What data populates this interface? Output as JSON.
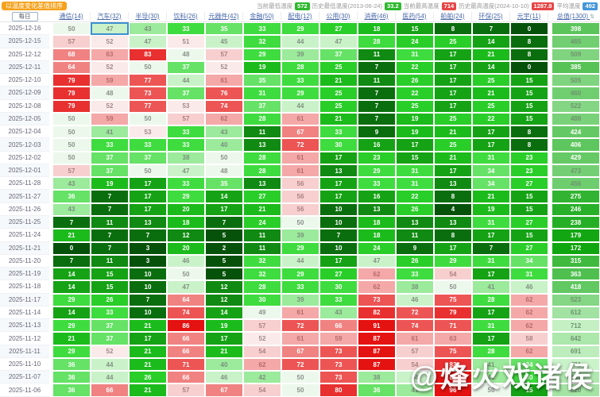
{
  "toolbar": {
    "sort_badge": "以温度变化差值排序",
    "stats": [
      {
        "label": "当前最低温度",
        "value": "572",
        "color": "#2db82d"
      },
      {
        "label": "历史最低温度(2013-06-24)",
        "value": "33.2",
        "color": "#2db82d"
      },
      {
        "label": "当前最高温度",
        "value": "714",
        "color": "#e64545"
      },
      {
        "label": "历史最高温度(2024-10-10)",
        "value": "1287.8",
        "color": "#e64545"
      },
      {
        "label": "平均温度",
        "value": "492",
        "color": "#4596d9"
      }
    ]
  },
  "table": {
    "date_header": "每日",
    "columns": [
      "通信(14)",
      "汽车(32)",
      "半导(30)",
      "饮料(26)",
      "元器件(42)",
      "金融(50)",
      "配电(12)",
      "公用(30)",
      "消费(46)",
      "医药(54)",
      "船舶(24)",
      "环保(25)",
      "元宇(11)"
    ],
    "total_header": "总值(1300)",
    "sort_icon": "⇅",
    "rows": [
      {
        "date": "2025-12-16",
        "values": [
          50,
          47,
          43,
          33,
          35,
          33,
          29,
          27,
          18,
          15,
          8,
          7,
          0
        ],
        "total": 398
      },
      {
        "date": "2025-12-15",
        "values": [
          57,
          52,
          47,
          51,
          45,
          32,
          44,
          47,
          28,
          24,
          25,
          14,
          8
        ],
        "total": 465
      },
      {
        "date": "2025-12-12",
        "values": [
          68,
          63,
          83,
          48,
          57,
          29,
          39,
          37,
          11,
          31,
          17,
          21,
          8
        ],
        "total": 509
      },
      {
        "date": "2025-12-11",
        "values": [
          64,
          52,
          50,
          37,
          52,
          19,
          28,
          25,
          7,
          22,
          17,
          14,
          0
        ],
        "total": 385
      },
      {
        "date": "2025-12-10",
        "values": [
          79,
          59,
          77,
          44,
          61,
          35,
          33,
          21,
          11,
          26,
          17,
          25,
          15
        ],
        "total": 505
      },
      {
        "date": "2025-12-09",
        "values": [
          79,
          48,
          73,
          37,
          76,
          31,
          29,
          25,
          7,
          22,
          17,
          21,
          15
        ],
        "total": 460
      },
      {
        "date": "2025-12-08",
        "values": [
          79,
          52,
          77,
          53,
          74,
          37,
          44,
          25,
          7,
          25,
          17,
          25,
          15
        ],
        "total": 522
      },
      {
        "date": "2025-12-05",
        "values": [
          50,
          59,
          50,
          57,
          62,
          28,
          61,
          21,
          7,
          19,
          25,
          22,
          15
        ],
        "total": 488
      },
      {
        "date": "2025-12-04",
        "values": [
          50,
          41,
          53,
          33,
          43,
          11,
          67,
          33,
          9,
          19,
          21,
          17,
          8
        ],
        "total": 424
      },
      {
        "date": "2025-12-03",
        "values": [
          50,
          33,
          33,
          33,
          40,
          13,
          72,
          30,
          16,
          17,
          25,
          17,
          8
        ],
        "total": 406
      },
      {
        "date": "2025-12-02",
        "values": [
          50,
          37,
          37,
          38,
          50,
          28,
          61,
          17,
          23,
          15,
          21,
          31,
          23
        ],
        "total": 429
      },
      {
        "date": "2025-12-01",
        "values": [
          57,
          37,
          50,
          47,
          48,
          28,
          61,
          13,
          29,
          31,
          17,
          34,
          23
        ],
        "total": 473
      },
      {
        "date": "2025-11-28",
        "values": [
          43,
          19,
          17,
          33,
          35,
          13,
          56,
          17,
          33,
          31,
          13,
          34,
          27
        ],
        "total": 456
      },
      {
        "date": "2025-11-27",
        "values": [
          36,
          7,
          17,
          29,
          14,
          27,
          56,
          17,
          16,
          22,
          8,
          21,
          15
        ],
        "total": 275
      },
      {
        "date": "2025-11-26",
        "values": [
          43,
          7,
          17,
          20,
          17,
          21,
          56,
          10,
          13,
          26,
          4,
          19,
          15
        ],
        "total": 246
      },
      {
        "date": "2025-11-25",
        "values": [
          7,
          11,
          13,
          18,
          7,
          24,
          50,
          10,
          18,
          13,
          13,
          31,
          27
        ],
        "total": 238
      },
      {
        "date": "2025-11-24",
        "values": [
          21,
          7,
          7,
          12,
          5,
          11,
          39,
          7,
          18,
          11,
          8,
          17,
          15
        ],
        "total": 179
      },
      {
        "date": "2025-11-21",
        "values": [
          0,
          7,
          3,
          20,
          2,
          11,
          29,
          10,
          24,
          9,
          17,
          7,
          27
        ],
        "total": 172
      },
      {
        "date": "2025-11-20",
        "values": [
          7,
          11,
          3,
          46,
          5,
          32,
          44,
          17,
          47,
          26,
          29,
          31,
          34
        ],
        "total": 315
      },
      {
        "date": "2025-11-19",
        "values": [
          14,
          15,
          10,
          50,
          5,
          32,
          29,
          27,
          62,
          33,
          54,
          17,
          31
        ],
        "total": 363
      },
      {
        "date": "2025-11-18",
        "values": [
          14,
          15,
          10,
          47,
          12,
          28,
          33,
          30,
          62,
          38,
          50,
          41,
          46
        ],
        "total": 418
      },
      {
        "date": "2025-11-17",
        "values": [
          29,
          26,
          7,
          64,
          12,
          30,
          39,
          33,
          73,
          46,
          75,
          28,
          62
        ],
        "total": 523
      },
      {
        "date": "2025-11-14",
        "values": [
          14,
          33,
          10,
          74,
          14,
          49,
          61,
          43,
          82,
          72,
          79,
          17,
          62
        ],
        "total": 612
      },
      {
        "date": "2025-11-13",
        "values": [
          29,
          37,
          21,
          86,
          19,
          57,
          72,
          66,
          91,
          74,
          71,
          31,
          62
        ],
        "total": 712
      },
      {
        "date": "2025-11-12",
        "values": [
          21,
          37,
          17,
          66,
          17,
          52,
          61,
          59,
          87,
          61,
          63,
          17,
          58
        ],
        "total": 642
      },
      {
        "date": "2025-11-11",
        "values": [
          29,
          52,
          21,
          66,
          21,
          54,
          67,
          73,
          87,
          57,
          75,
          28,
          62
        ],
        "total": 691
      },
      {
        "date": "2025-11-10",
        "values": [
          36,
          44,
          21,
          71,
          40,
          62,
          72,
          73,
          87,
          54,
          83,
          41,
          34
        ],
        "total": 731
      },
      {
        "date": "2025-11-07",
        "values": [
          36,
          44,
          26,
          66,
          46,
          42,
          50,
          73,
          38,
          44,
          85,
          41,
          30
        ],
        "total": 655
      },
      {
        "date": "2025-11-06",
        "values": [
          36,
          66,
          21,
          57,
          67,
          54,
          50,
          80,
          36,
          41,
          96,
          50,
          15
        ],
        "total": 620
      }
    ]
  },
  "selection": {
    "row": 0,
    "col": 1
  },
  "colors": {
    "green_dark": "#06520a",
    "green_bright": "#3fdc3f",
    "red_bright": "#e51212",
    "selection_blue": "#3d8fd1",
    "badge_orange": "#f5a21d",
    "header_blue": "#4a69a8"
  },
  "watermark": "@烽火戏诸侯"
}
